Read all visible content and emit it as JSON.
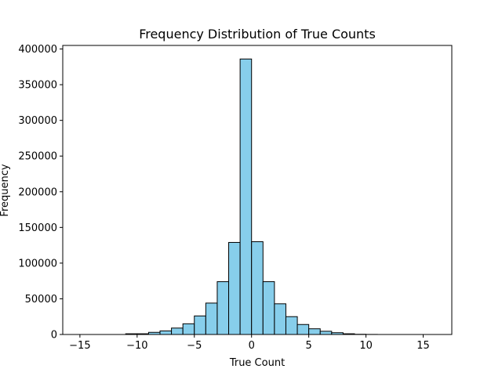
{
  "chart_data": {
    "type": "bar",
    "title": "Frequency Distribution of True Counts",
    "xlabel": "True Count",
    "ylabel": "Frequency",
    "xlim": [
      -16.5,
      17.5
    ],
    "ylim": [
      0,
      405000
    ],
    "xticks": [
      -15,
      -10,
      -5,
      0,
      5,
      10,
      15
    ],
    "yticks": [
      0,
      50000,
      100000,
      150000,
      200000,
      250000,
      300000,
      350000,
      400000
    ],
    "bin_width": 1,
    "bars": [
      {
        "x0": -15,
        "value": 0
      },
      {
        "x0": -14,
        "value": 0
      },
      {
        "x0": -13,
        "value": 0
      },
      {
        "x0": -12,
        "value": 0
      },
      {
        "x0": -11,
        "value": 1000
      },
      {
        "x0": -10,
        "value": 1000
      },
      {
        "x0": -9,
        "value": 3000
      },
      {
        "x0": -8,
        "value": 5000
      },
      {
        "x0": -7,
        "value": 9000
      },
      {
        "x0": -6,
        "value": 15000
      },
      {
        "x0": -5,
        "value": 26000
      },
      {
        "x0": -4,
        "value": 44000
      },
      {
        "x0": -3,
        "value": 74000
      },
      {
        "x0": -2,
        "value": 129000
      },
      {
        "x0": -1,
        "value": 386000
      },
      {
        "x0": 0,
        "value": 130000
      },
      {
        "x0": 1,
        "value": 74000
      },
      {
        "x0": 2,
        "value": 43000
      },
      {
        "x0": 3,
        "value": 25000
      },
      {
        "x0": 4,
        "value": 14000
      },
      {
        "x0": 5,
        "value": 8000
      },
      {
        "x0": 6,
        "value": 4500
      },
      {
        "x0": 7,
        "value": 2500
      },
      {
        "x0": 8,
        "value": 1000
      },
      {
        "x0": 9,
        "value": 300
      },
      {
        "x0": 10,
        "value": 100
      },
      {
        "x0": 11,
        "value": 0
      },
      {
        "x0": 12,
        "value": 0
      },
      {
        "x0": 13,
        "value": 0
      },
      {
        "x0": 14,
        "value": 0
      },
      {
        "x0": 15,
        "value": 0
      }
    ],
    "bar_color": "#87ceeb",
    "edge_color": "#000000",
    "grid": false,
    "legend": "none"
  }
}
